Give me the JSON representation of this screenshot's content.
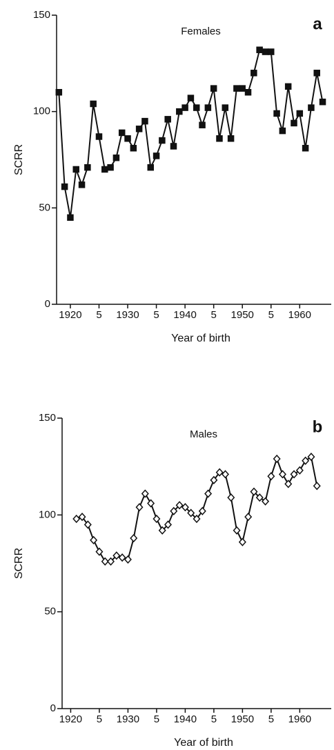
{
  "chart_data": [
    {
      "type": "line",
      "title": "Females",
      "annotation": "a",
      "x_label": "Year of birth",
      "y_label": "SCRR",
      "marker": "square",
      "marker_fill": "#111",
      "color": "#111",
      "xlim": [
        1917.6,
        1965.5
      ],
      "ylim": [
        0,
        150
      ],
      "xticks": [
        1920,
        {
          "value": 1925,
          "label": "5"
        },
        1930,
        {
          "value": 1935,
          "label": "5"
        },
        1940,
        {
          "value": 1945,
          "label": "5"
        },
        1950,
        {
          "value": 1955,
          "label": "5"
        },
        1960
      ],
      "yticks": [
        0,
        50,
        100,
        150
      ],
      "x": [
        1918,
        1919,
        1920,
        1921,
        1922,
        1923,
        1924,
        1925,
        1926,
        1927,
        1928,
        1929,
        1930,
        1931,
        1932,
        1933,
        1934,
        1935,
        1936,
        1937,
        1938,
        1939,
        1940,
        1941,
        1942,
        1943,
        1944,
        1945,
        1946,
        1947,
        1948,
        1949,
        1950,
        1951,
        1952,
        1953,
        1954,
        1955,
        1956,
        1957,
        1958,
        1959,
        1960,
        1961,
        1962,
        1963,
        1964
      ],
      "values": [
        110,
        61,
        45,
        70,
        62,
        71,
        104,
        87,
        70,
        71,
        76,
        89,
        86,
        81,
        91,
        95,
        71,
        77,
        85,
        96,
        82,
        100,
        102,
        107,
        102,
        93,
        102,
        112,
        86,
        102,
        86,
        112,
        112,
        110,
        120,
        132,
        131,
        131,
        99,
        90,
        113,
        94,
        99,
        81,
        102,
        120,
        105
      ]
    },
    {
      "type": "line",
      "title": "Males",
      "annotation": "b",
      "x_label": "Year of birth",
      "y_label": "SCRR",
      "marker": "diamond",
      "marker_fill": "#fff",
      "color": "#111",
      "xlim": [
        1918.5,
        1965.5
      ],
      "ylim": [
        0,
        150
      ],
      "xticks": [
        1920,
        {
          "value": 1925,
          "label": "5"
        },
        1930,
        {
          "value": 1935,
          "label": "5"
        },
        1940,
        {
          "value": 1945,
          "label": "5"
        },
        1950,
        {
          "value": 1955,
          "label": "5"
        },
        1960
      ],
      "yticks": [
        0,
        50,
        100,
        150
      ],
      "x": [
        1921,
        1922,
        1923,
        1924,
        1925,
        1926,
        1927,
        1928,
        1929,
        1930,
        1931,
        1932,
        1933,
        1934,
        1935,
        1936,
        1937,
        1938,
        1939,
        1940,
        1941,
        1942,
        1943,
        1944,
        1945,
        1946,
        1947,
        1948,
        1949,
        1950,
        1951,
        1952,
        1953,
        1954,
        1955,
        1956,
        1957,
        1958,
        1959,
        1960,
        1961,
        1962,
        1963
      ],
      "values": [
        98,
        99,
        95,
        87,
        81,
        76,
        76,
        79,
        78,
        77,
        88,
        104,
        111,
        106,
        98,
        92,
        95,
        102,
        105,
        104,
        101,
        98,
        102,
        111,
        118,
        122,
        121,
        109,
        92,
        86,
        99,
        112,
        109,
        107,
        120,
        129,
        121,
        116,
        121,
        123,
        128,
        130,
        115
      ]
    }
  ]
}
